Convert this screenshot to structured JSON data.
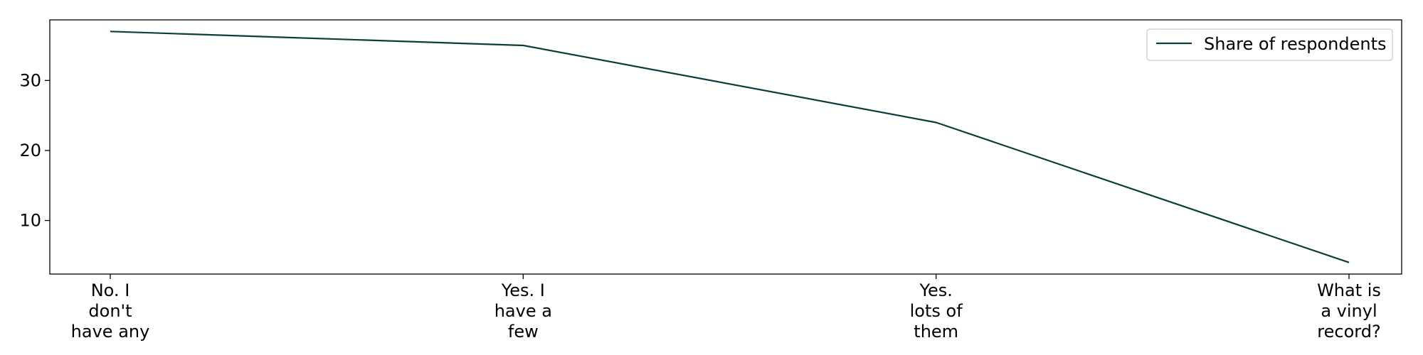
{
  "chart_data": {
    "type": "line",
    "categories": [
      "No. I\ndon't\nhave any",
      "Yes. I\nhave a\nfew",
      "Yes.\nlots of\nthem",
      "What is\na vinyl\nrecord?"
    ],
    "series": [
      {
        "name": "Share of respondents",
        "values": [
          37,
          35,
          24,
          4
        ],
        "color": "#0b3d3a"
      }
    ],
    "title": "",
    "xlabel": "",
    "ylabel": "",
    "ylim": [
      2.35,
      38.65
    ],
    "yticks": [
      10,
      20,
      30
    ],
    "grid": false,
    "legend_position": "top-right"
  }
}
